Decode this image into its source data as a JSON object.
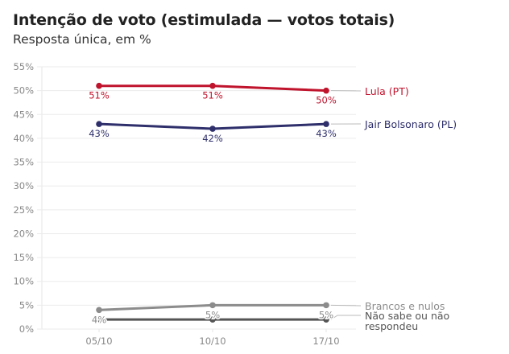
{
  "chart_data": {
    "type": "line",
    "title": "Intenção de voto (estimulada — votos totais)",
    "subtitle": "Resposta única, em %",
    "xlabel": "",
    "ylabel": "",
    "x": [
      "05/10",
      "10/10",
      "17/10"
    ],
    "ylim": [
      0,
      55
    ],
    "yticks": [
      0,
      5,
      10,
      15,
      20,
      25,
      30,
      35,
      40,
      45,
      50,
      55
    ],
    "ytick_labels": [
      "0%",
      "5%",
      "10%",
      "15%",
      "20%",
      "25%",
      "30%",
      "35%",
      "40%",
      "45%",
      "50%",
      "55%"
    ],
    "grid": true,
    "legend": "direct-labels-right",
    "series": [
      {
        "name": "Lula (PT)",
        "label_lines": [
          "Lula (PT)"
        ],
        "color": "#c0142d",
        "values": [
          51,
          51,
          50
        ],
        "data_labels": [
          "51%",
          "51%",
          "50%"
        ],
        "show_labels": [
          true,
          true,
          true
        ]
      },
      {
        "name": "Jair Bolsonaro (PL)",
        "label_lines": [
          "Jair Bolsonaro (PL)"
        ],
        "color": "#2e2f6b",
        "values": [
          43,
          42,
          43
        ],
        "data_labels": [
          "43%",
          "42%",
          "43%"
        ],
        "show_labels": [
          true,
          true,
          true
        ]
      },
      {
        "name": "Brancos e nulos",
        "label_lines": [
          "Brancos e nulos"
        ],
        "color": "#8c8c8c",
        "values": [
          4,
          5,
          5
        ],
        "data_labels": [
          "4%",
          "5%",
          "5%"
        ],
        "show_labels": [
          true,
          true,
          true
        ]
      },
      {
        "name": "Não sabe ou não respondeu",
        "label_lines": [
          "Não sabe ou não",
          "respondeu"
        ],
        "color": "#555555",
        "values": [
          2,
          2,
          2
        ],
        "data_labels": [
          "2%",
          "2%",
          "2%"
        ],
        "show_labels": [
          false,
          false,
          false
        ]
      }
    ]
  }
}
